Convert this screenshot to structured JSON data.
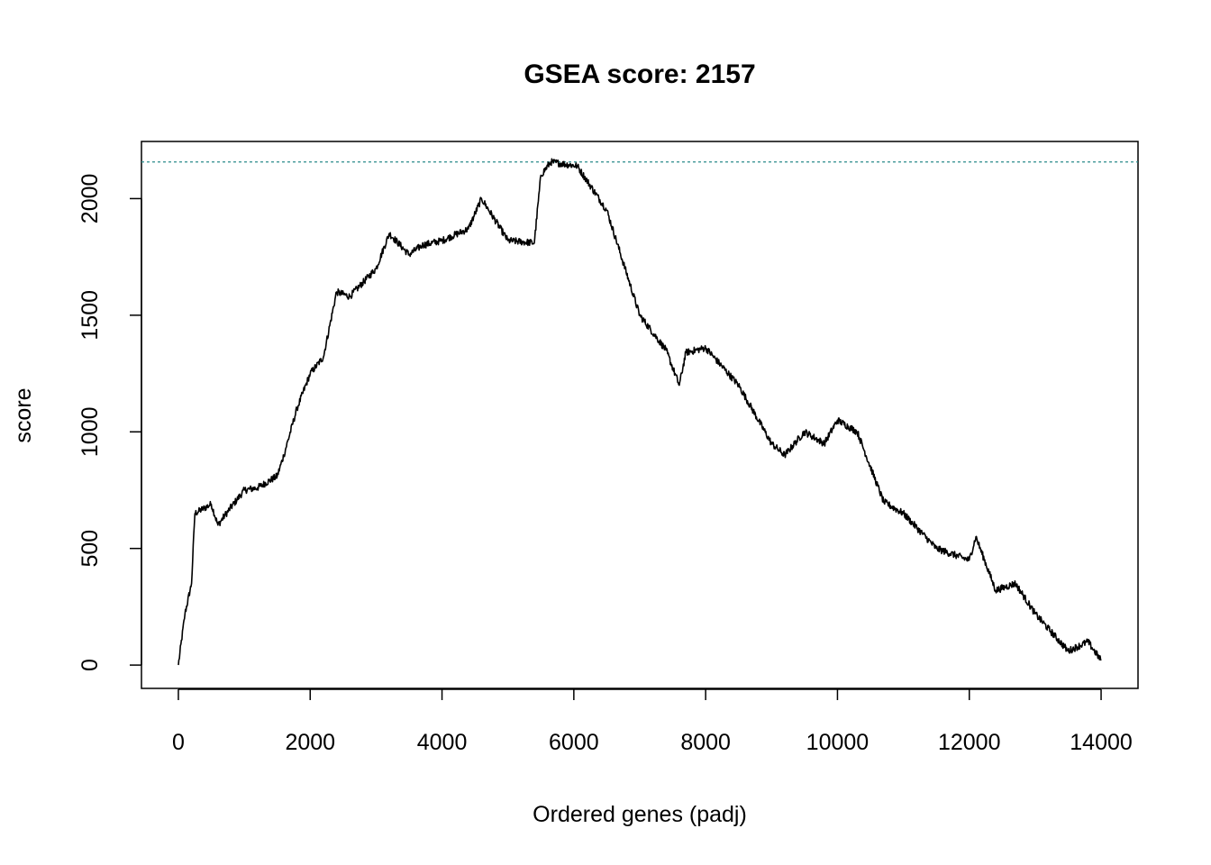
{
  "chart_data": {
    "type": "line",
    "title": "GSEA score: 2157",
    "xlabel": "Ordered genes (padj)",
    "ylabel": "score",
    "xlim": [
      -560,
      14560
    ],
    "ylim": [
      -100,
      2245
    ],
    "xticks": [
      0,
      2000,
      4000,
      6000,
      8000,
      10000,
      12000,
      14000
    ],
    "yticks": [
      0,
      500,
      1000,
      1500,
      2000
    ],
    "reference_line": {
      "y": 2157,
      "style": "dashed",
      "color": "#2a8a8a"
    },
    "line_color": "#000000",
    "grid": false,
    "series": [
      {
        "x": [
          0,
          100,
          200,
          250,
          500,
          600,
          700,
          1000,
          1200,
          1500,
          1600,
          1800,
          2000,
          2200,
          2400,
          2600,
          3000,
          3200,
          3500,
          3700,
          4000,
          4400,
          4600,
          5000,
          5400,
          5500,
          5650,
          6050,
          6500,
          7000,
          7400,
          7600,
          7700,
          8000,
          8500,
          9000,
          9200,
          9500,
          9800,
          10000,
          10300,
          10700,
          11000,
          11500,
          12000,
          12100,
          12400,
          12700,
          13000,
          13500,
          13800,
          14000
        ],
        "y": [
          0,
          220,
          350,
          650,
          690,
          600,
          640,
          750,
          760,
          810,
          900,
          1100,
          1250,
          1320,
          1600,
          1580,
          1700,
          1850,
          1760,
          1800,
          1820,
          1870,
          2000,
          1820,
          1810,
          2100,
          2157,
          2140,
          1950,
          1500,
          1350,
          1200,
          1340,
          1360,
          1200,
          950,
          900,
          1000,
          950,
          1050,
          1000,
          700,
          650,
          500,
          450,
          550,
          320,
          350,
          220,
          60,
          100,
          20
        ]
      }
    ]
  }
}
